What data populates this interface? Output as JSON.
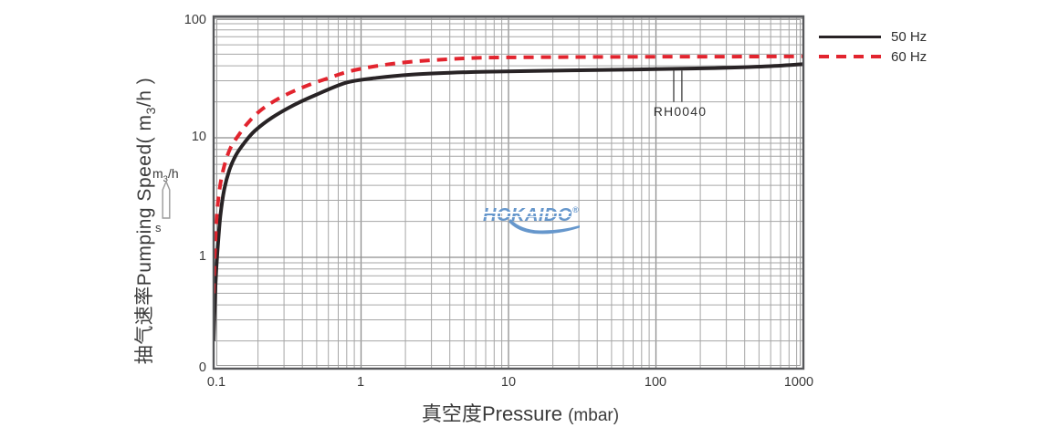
{
  "colors": {
    "curve_50hz": "#282325",
    "curve_60hz": "#e2242e",
    "grid_minor": "#a6a6a6",
    "grid_major": "#8e8e8e",
    "plot_border": "#57585b",
    "text": "#3b3b3b",
    "logo_blue": "#6697cc"
  },
  "y_axis": {
    "title_cn": "抽气速率",
    "title_en": "Pumping Speed",
    "unit_open": "( m",
    "unit_sub": "3",
    "unit_close": "/h )",
    "ticks": [
      "100",
      "10",
      "1",
      "0"
    ]
  },
  "x_axis": {
    "title_cn": "真空度",
    "title_en": "Pressure",
    "unit": "(mbar)",
    "ticks": [
      "0.1",
      "1",
      "10",
      "100",
      "1000"
    ]
  },
  "side_unit": {
    "line1_prefix": "m",
    "line1_sub": "3",
    "line1_suffix": "/h",
    "line2": "s"
  },
  "legend": [
    {
      "label": "50 Hz",
      "style": "solid",
      "color": "#282325"
    },
    {
      "label": "60 Hz",
      "style": "dashed",
      "color": "#e2242e"
    }
  ],
  "logo": {
    "text": "HOKAIDO",
    "reg": "®"
  },
  "chart_data": {
    "type": "line",
    "title": "",
    "xlabel": "真空度Pressure (mbar)",
    "ylabel": "抽气速率Pumping Speed (m3/h)",
    "x_scale": "log",
    "y_scale": "log",
    "xlim": [
      0.1,
      1000
    ],
    "ylim": [
      0.12,
      103
    ],
    "x_ticks": [
      0.1,
      1,
      10,
      100,
      1000
    ],
    "y_ticks": [
      1,
      10,
      100
    ],
    "grid": true,
    "legend_position": "top-right-outside",
    "annotation": {
      "label": "RH0040",
      "pressures": [
        132,
        150
      ],
      "v_top": 36.5,
      "v_bottom": 20
    },
    "series": [
      {
        "name": "50 Hz",
        "color": "#282325",
        "style": "solid",
        "points": [
          [
            0.1,
            0.2
          ],
          [
            0.103,
            0.6
          ],
          [
            0.106,
            1.1
          ],
          [
            0.111,
            2.2
          ],
          [
            0.118,
            3.7
          ],
          [
            0.128,
            5.4
          ],
          [
            0.142,
            7.2
          ],
          [
            0.163,
            9.2
          ],
          [
            0.19,
            11.4
          ],
          [
            0.25,
            14.8
          ],
          [
            0.35,
            18.8
          ],
          [
            0.5,
            23
          ],
          [
            0.8,
            29
          ],
          [
            1.3,
            31.8
          ],
          [
            2.2,
            33.8
          ],
          [
            4,
            35
          ],
          [
            7,
            35.7
          ],
          [
            15,
            36.3
          ],
          [
            40,
            36.9
          ],
          [
            100,
            37.5
          ],
          [
            250,
            38.3
          ],
          [
            550,
            39.5
          ],
          [
            1000,
            41.3
          ]
        ]
      },
      {
        "name": "60 Hz",
        "color": "#e2242e",
        "style": "dashed",
        "points": [
          [
            0.1,
            0.5
          ],
          [
            0.102,
            1.1
          ],
          [
            0.105,
            2.2
          ],
          [
            0.11,
            3.8
          ],
          [
            0.118,
            5.8
          ],
          [
            0.13,
            8.2
          ],
          [
            0.15,
            10.8
          ],
          [
            0.175,
            13.8
          ],
          [
            0.215,
            17.5
          ],
          [
            0.29,
            22
          ],
          [
            0.42,
            27
          ],
          [
            0.62,
            32
          ],
          [
            0.85,
            36.2
          ],
          [
            1.3,
            40
          ],
          [
            2.2,
            43.3
          ],
          [
            4,
            45.5
          ],
          [
            7,
            46.8
          ],
          [
            15,
            47.2
          ],
          [
            40,
            47.5
          ],
          [
            150,
            47.7
          ],
          [
            450,
            47.8
          ],
          [
            1000,
            48
          ]
        ]
      }
    ]
  }
}
